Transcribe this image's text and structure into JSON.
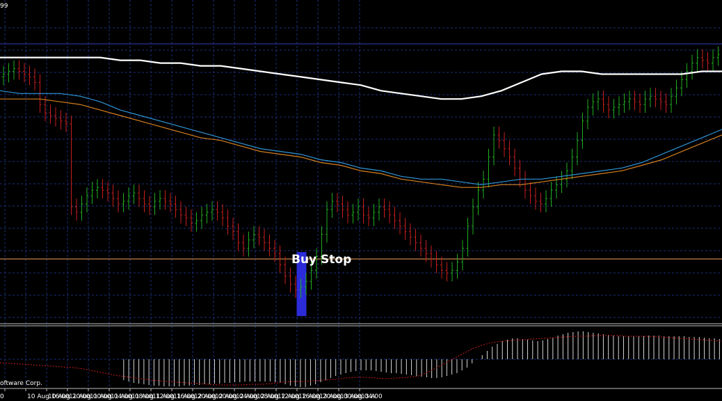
{
  "corner_top_left": "99",
  "copyright": "oftware Corp.",
  "colors": {
    "background": "#000000",
    "grid": "#1c2f7a",
    "bull": "#1fae1f",
    "bear": "#c81e1e",
    "ma_slow": "#ffffff",
    "ma_mid": "#2f94d6",
    "ma_fast": "#d6801f",
    "buy_stop_line": "#c6844a",
    "resistance_line": "#3340b8",
    "highlight": "#2b2bd9",
    "histogram": "#d8d8d8",
    "signal": "#c81e1e"
  },
  "chart_data": [
    {
      "type": "candlestick",
      "title": "",
      "x_tick_labels": [
        "0",
        "10 Aug 16:00",
        "10 Aug 20:00",
        "11 Aug 00:00",
        "11 Aug 04:00",
        "11 Aug 08:00",
        "11 Aug 12:00",
        "11 Aug 16:00",
        "11 Aug 20:00",
        "12 Aug 00:00",
        "12 Aug 04:00",
        "12 Aug 08:00",
        "12 Aug 12:00",
        "12 Aug 16:00",
        "12 Aug 20:00",
        "13 Aug 00:00",
        "13 Aug 04:00",
        "13 A"
      ],
      "bars_per_label": 4,
      "ylim": [
        0,
        100
      ],
      "grid": true,
      "close": [
        82,
        83,
        84,
        83,
        82,
        81,
        79,
        71,
        68,
        67,
        66,
        65,
        64,
        34,
        32,
        35,
        38,
        40,
        41,
        40,
        39,
        37,
        35,
        36,
        38,
        39,
        37,
        35,
        34,
        36,
        37,
        36,
        35,
        33,
        31,
        30,
        28,
        29,
        31,
        32,
        33,
        32,
        30,
        27,
        25,
        21,
        19,
        22,
        24,
        23,
        21,
        19,
        17,
        13,
        9,
        6,
        4,
        5,
        7,
        11,
        16,
        24,
        33,
        36,
        35,
        33,
        31,
        32,
        34,
        31,
        30,
        32,
        34,
        33,
        31,
        29,
        27,
        25,
        23,
        21,
        19,
        17,
        15,
        13,
        11,
        10,
        11,
        14,
        19,
        27,
        34,
        40,
        44,
        52,
        60,
        58,
        55,
        52,
        48,
        44,
        40,
        38,
        36,
        35,
        37,
        40,
        42,
        44,
        47,
        52,
        58,
        65,
        70,
        72,
        73,
        71,
        69,
        70,
        71,
        72,
        73,
        72,
        71,
        73,
        74,
        73,
        72,
        71,
        74,
        77,
        80,
        83,
        86,
        88,
        87,
        86,
        88,
        89,
        87,
        86,
        85,
        86,
        87
      ]
    },
    {
      "type": "line",
      "series": [
        {
          "values": [
            88,
            88,
            88,
            88,
            88,
            88,
            87,
            87,
            86,
            86,
            85,
            85,
            84,
            83,
            82,
            81,
            80,
            79,
            78,
            76,
            75,
            74,
            73,
            73,
            74,
            76,
            79,
            82,
            83,
            83,
            82,
            82,
            82,
            82,
            82,
            83,
            83
          ]
        },
        {
          "values": [
            76,
            75,
            75,
            75,
            74,
            72,
            69,
            67,
            65,
            63,
            61,
            59,
            57,
            55,
            54,
            53,
            51,
            50,
            48,
            47,
            45,
            44,
            44,
            43,
            42,
            43,
            44,
            44,
            45,
            46,
            47,
            48,
            50,
            53,
            56,
            59,
            62
          ]
        },
        {
          "values": [
            73,
            73,
            73,
            72,
            71,
            69,
            67,
            65,
            63,
            61,
            59,
            58,
            56,
            54,
            53,
            52,
            50,
            49,
            47,
            46,
            44,
            43,
            42,
            41,
            41,
            42,
            42,
            43,
            44,
            45,
            46,
            47,
            49,
            51,
            54,
            57,
            60
          ]
        }
      ]
    },
    {
      "type": "bar",
      "values": [
        0,
        0,
        0,
        0,
        0,
        0,
        0,
        0,
        0,
        0,
        0,
        0,
        0,
        0,
        0,
        0,
        0,
        0,
        0,
        0,
        0,
        0,
        0,
        0,
        -30,
        -32,
        -34,
        -35,
        -36,
        -37,
        -38,
        -38,
        -39,
        -39,
        -39,
        -39,
        -38,
        -38,
        -37,
        -37,
        -36,
        -36,
        -35,
        -35,
        -34,
        -34,
        -33,
        -33,
        -32,
        -32,
        -32,
        -32,
        -32,
        -32,
        -33,
        -34,
        -36,
        -38,
        -39,
        -40,
        -40,
        -38,
        -36,
        -33,
        -30,
        -27,
        -24,
        -22,
        -20,
        -18,
        -17,
        -16,
        -16,
        -16,
        -17,
        -18,
        -19,
        -20,
        -20,
        -21,
        -22,
        -23,
        -24,
        -25,
        -26,
        -27,
        -27,
        -26,
        -24,
        -22,
        -20,
        -16,
        -12,
        -6,
        0,
        6,
        12,
        18,
        22,
        26,
        28,
        30,
        30,
        29,
        28,
        27,
        26,
        27,
        29,
        31,
        34,
        36,
        38,
        39,
        40,
        40,
        39,
        38,
        37,
        36,
        35,
        34,
        33,
        33,
        33,
        33,
        33,
        33,
        34,
        34,
        34,
        33,
        33,
        33,
        33,
        33,
        32,
        32,
        32,
        31,
        30,
        30,
        29
      ],
      "signal": [
        -5,
        -6,
        -7,
        -8,
        -9,
        -10,
        -11,
        -12,
        -14,
        -17,
        -20,
        -23,
        -25,
        -27,
        -29,
        -31,
        -32,
        -33,
        -34,
        -35,
        -36,
        -37,
        -37,
        -37,
        -36,
        -36,
        -35,
        -33,
        -32,
        -32,
        -31,
        -30,
        -29,
        -27,
        -26,
        -26,
        -27,
        -28,
        -27,
        -26,
        -24,
        -18,
        -10,
        -2,
        6,
        14,
        20,
        24,
        26,
        27,
        28,
        29,
        30,
        31,
        32,
        33,
        33,
        34,
        34,
        34,
        33,
        33,
        33,
        32,
        31,
        30,
        29,
        28,
        27,
        26
      ]
    }
  ],
  "annotation": {
    "label": "Buy Stop",
    "bar_index": 57
  }
}
